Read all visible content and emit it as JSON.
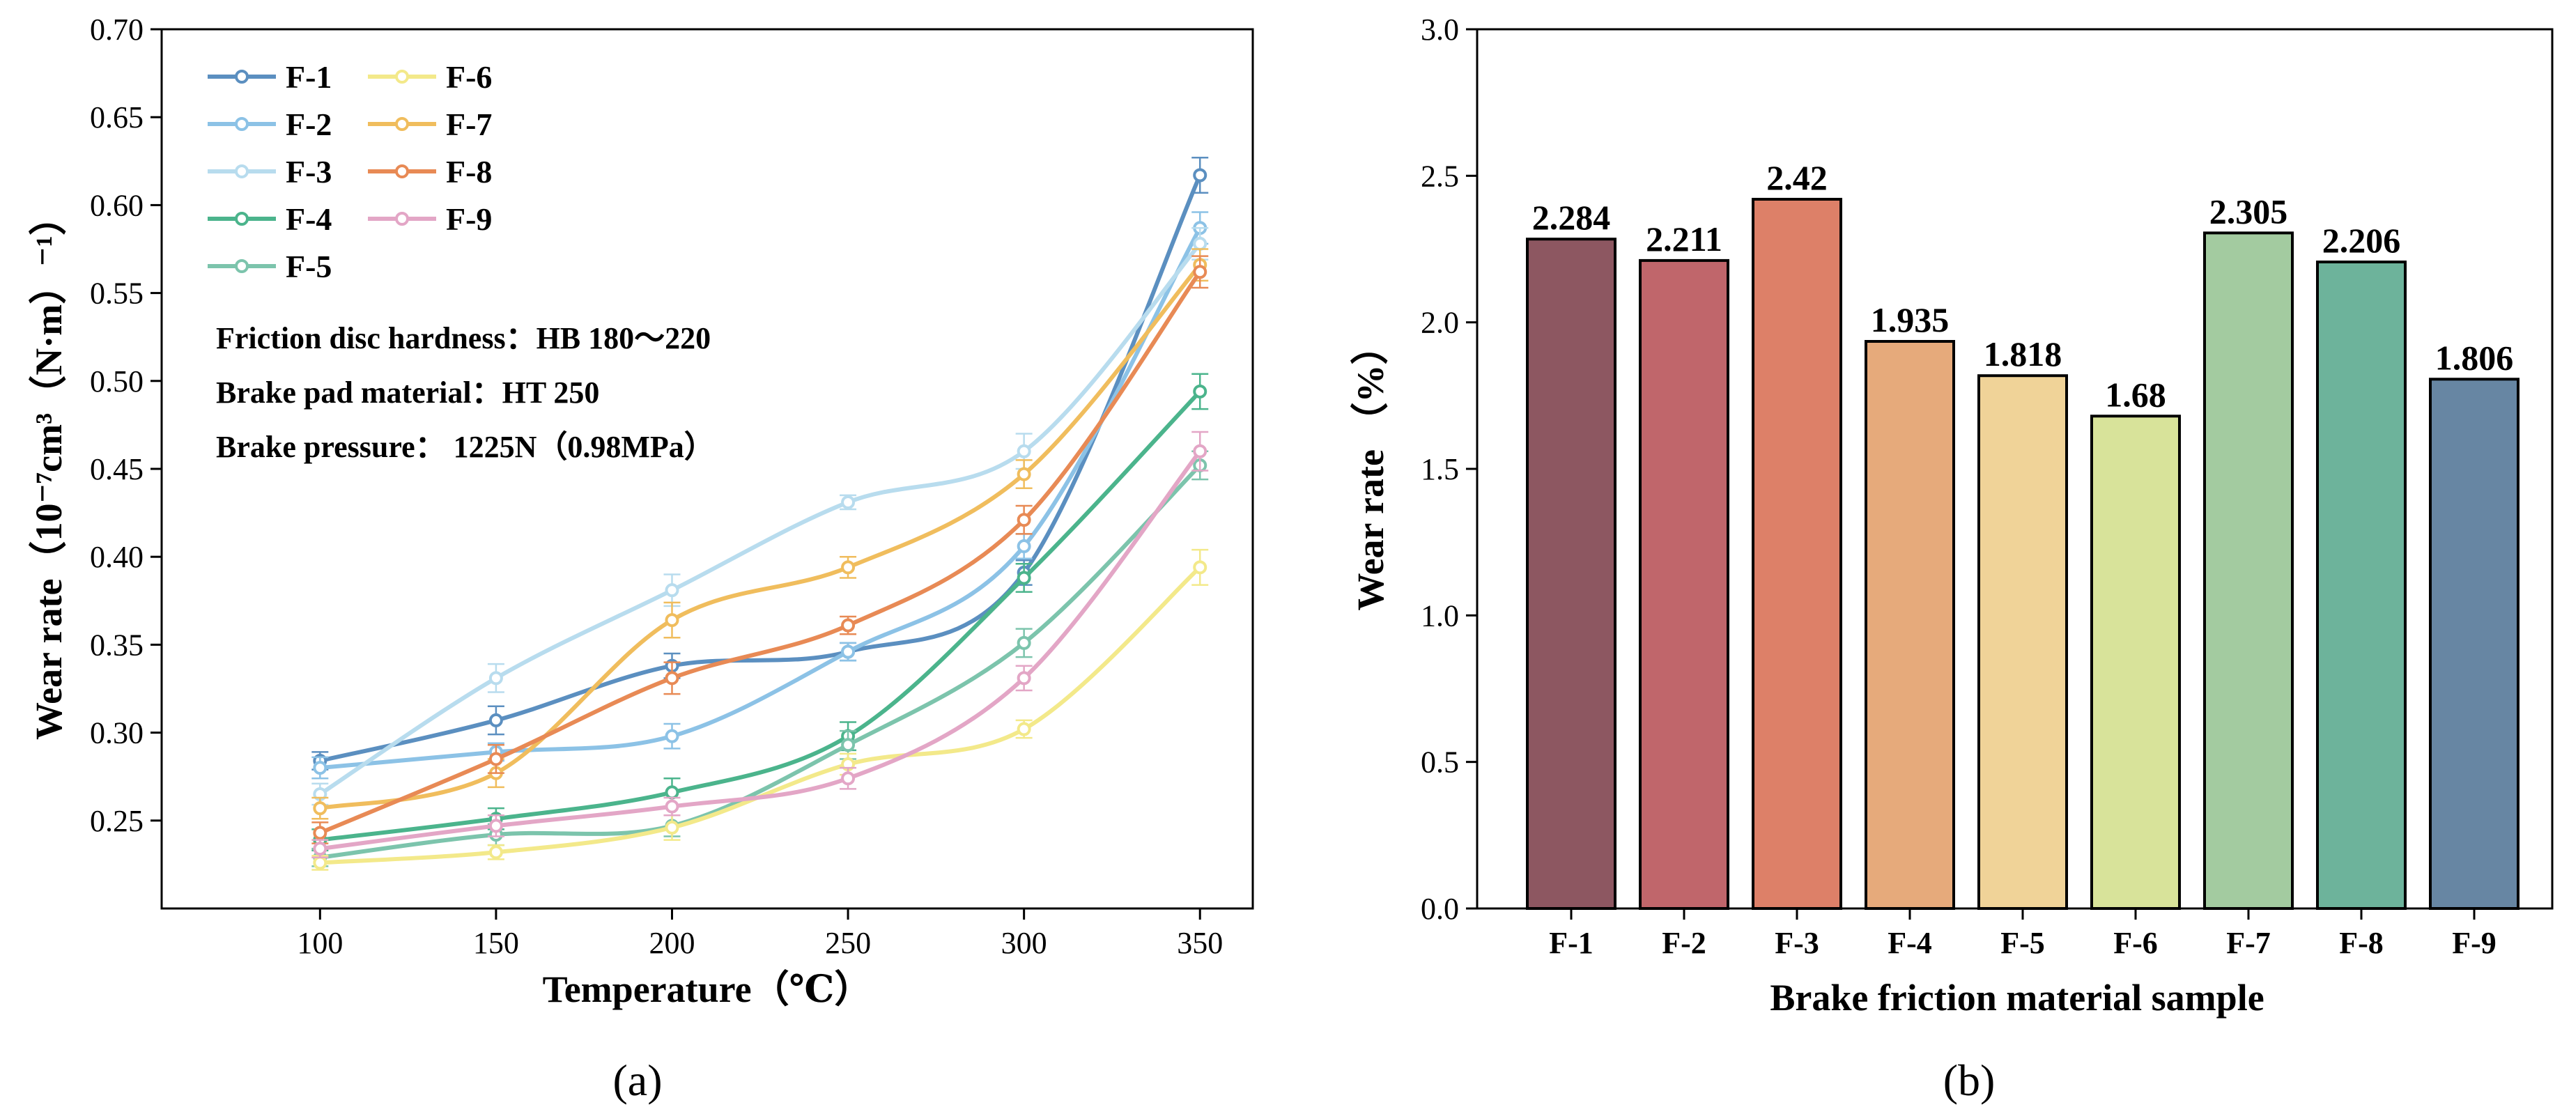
{
  "chart_data": [
    {
      "type": "line",
      "panel_caption": "(a)",
      "xlabel": "Temperature（℃）",
      "ylabel": "Wear rate（10⁻⁷cm³（N·m）⁻¹）",
      "x": [
        100,
        150,
        200,
        250,
        300,
        350
      ],
      "xlim": [
        55,
        365
      ],
      "ylim": [
        0.2,
        0.7
      ],
      "xticks": [
        "100",
        "150",
        "200",
        "250",
        "300",
        "350"
      ],
      "yticks": [
        "0.25",
        "0.30",
        "0.35",
        "0.40",
        "0.45",
        "0.50",
        "0.55",
        "0.60",
        "0.65",
        "0.70"
      ],
      "legend_position": "top-left",
      "annotations": [
        "Friction disc hardness：HB 180～220",
        "Brake pad material：HT 250",
        "Brake pressure：  1225N（0.98MPa）"
      ],
      "series": [
        {
          "name": "F-1",
          "color": "#5b8fc0",
          "values": [
            0.284,
            0.307,
            0.338,
            0.346,
            0.391,
            0.617
          ],
          "errors": [
            0.005,
            0.008,
            0.007,
            0.005,
            0.007,
            0.01
          ]
        },
        {
          "name": "F-2",
          "color": "#8cc2e6",
          "values": [
            0.28,
            0.289,
            0.298,
            0.346,
            0.406,
            0.587
          ],
          "errors": [
            0.006,
            0.005,
            0.007,
            0.005,
            0.007,
            0.009
          ]
        },
        {
          "name": "F-3",
          "color": "#b8dcee",
          "values": [
            0.265,
            0.331,
            0.381,
            0.431,
            0.46,
            0.578
          ],
          "errors": [
            0.006,
            0.008,
            0.009,
            0.004,
            0.01,
            0.009
          ]
        },
        {
          "name": "F-4",
          "color": "#4bb48c",
          "values": [
            0.239,
            0.251,
            0.266,
            0.298,
            0.388,
            0.494
          ],
          "errors": [
            0.006,
            0.006,
            0.008,
            0.008,
            0.008,
            0.01
          ]
        },
        {
          "name": "F-5",
          "color": "#7cc4ac",
          "values": [
            0.229,
            0.242,
            0.247,
            0.293,
            0.351,
            0.452
          ],
          "errors": [
            0.005,
            0.006,
            0.006,
            0.008,
            0.008,
            0.008
          ]
        },
        {
          "name": "F-6",
          "color": "#f3e98a",
          "values": [
            0.226,
            0.232,
            0.246,
            0.282,
            0.302,
            0.394
          ],
          "errors": [
            0.004,
            0.004,
            0.007,
            0.006,
            0.005,
            0.01
          ]
        },
        {
          "name": "F-7",
          "color": "#f0bd5d",
          "values": [
            0.257,
            0.277,
            0.364,
            0.394,
            0.447,
            0.566
          ],
          "errors": [
            0.006,
            0.008,
            0.01,
            0.006,
            0.008,
            0.009
          ]
        },
        {
          "name": "F-8",
          "color": "#e88a55",
          "values": [
            0.243,
            0.285,
            0.331,
            0.361,
            0.421,
            0.562
          ],
          "errors": [
            0.006,
            0.008,
            0.009,
            0.005,
            0.008,
            0.009
          ]
        },
        {
          "name": "F-9",
          "color": "#e3a6c6",
          "values": [
            0.234,
            0.247,
            0.258,
            0.274,
            0.331,
            0.46
          ],
          "errors": [
            0.005,
            0.006,
            0.005,
            0.006,
            0.007,
            0.011
          ]
        }
      ]
    },
    {
      "type": "bar",
      "panel_caption": "(b)",
      "xlabel": "Brake friction material sample",
      "ylabel": "Wear rate （%）",
      "ylim": [
        0.0,
        3.0
      ],
      "yticks": [
        "0.0",
        "0.5",
        "1.0",
        "1.5",
        "2.0",
        "2.5",
        "3.0"
      ],
      "categories": [
        "F-1",
        "F-2",
        "F-3",
        "F-4",
        "F-5",
        "F-6",
        "F-7",
        "F-8",
        "F-9"
      ],
      "values": [
        2.284,
        2.211,
        2.42,
        1.935,
        1.818,
        1.68,
        2.305,
        2.206,
        1.806
      ],
      "data_labels": [
        "2.284",
        "2.211",
        "2.42",
        "1.935",
        "1.818",
        "1.68",
        "2.305",
        "2.206",
        "1.806"
      ],
      "colors": [
        "#8d5761",
        "#c0666b",
        "#dd8068",
        "#e6aa7b",
        "#f0d398",
        "#d8e39a",
        "#a3cba0",
        "#6db39b",
        "#6786a3"
      ]
    }
  ]
}
